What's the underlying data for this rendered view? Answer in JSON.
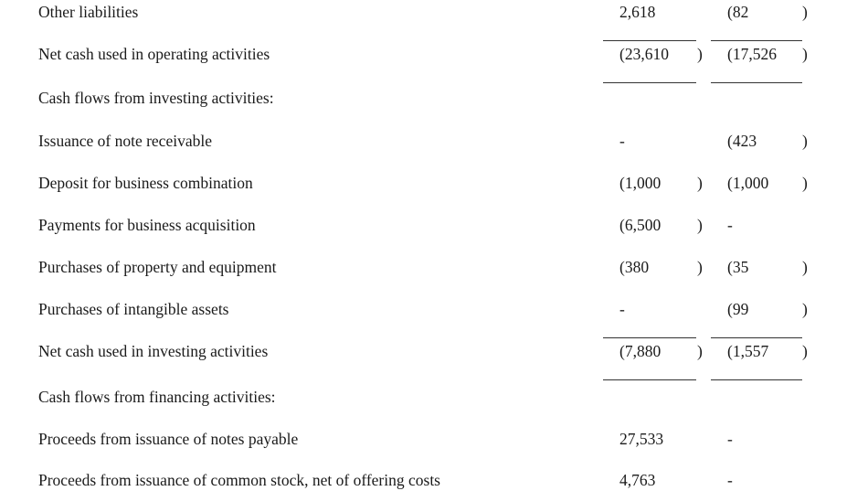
{
  "rows": [
    {
      "label": "Other liabilities",
      "c1": "2,618",
      "c1_paren": "",
      "c2": "(82",
      "c2_paren": ")"
    },
    {
      "label": "Net cash used in operating activities",
      "c1": "(23,610",
      "c1_paren": ")",
      "c2": "(17,526",
      "c2_paren": ")",
      "total": true
    },
    {
      "label": "Cash flows from investing activities:",
      "c1": "",
      "c1_paren": "",
      "c2": "",
      "c2_paren": ""
    },
    {
      "label": "Issuance of note receivable",
      "c1": "-",
      "c1_paren": "",
      "c2": "(423",
      "c2_paren": ")"
    },
    {
      "label": "Deposit for business combination",
      "c1": "(1,000",
      "c1_paren": ")",
      "c2": "(1,000",
      "c2_paren": ")"
    },
    {
      "label": "Payments for business acquisition",
      "c1": "(6,500",
      "c1_paren": ")",
      "c2": "-",
      "c2_paren": ""
    },
    {
      "label": "Purchases of property and equipment",
      "c1": "(380",
      "c1_paren": ")",
      "c2": "(35",
      "c2_paren": ")"
    },
    {
      "label": "Purchases of intangible assets",
      "c1": "-",
      "c1_paren": "",
      "c2": "(99",
      "c2_paren": ")"
    },
    {
      "label": "Net cash used in investing activities",
      "c1": "(7,880",
      "c1_paren": ")",
      "c2": "(1,557",
      "c2_paren": ")",
      "total": true
    },
    {
      "label": "Cash flows from financing activities:",
      "c1": "",
      "c1_paren": "",
      "c2": "",
      "c2_paren": ""
    },
    {
      "label": "Proceeds from issuance of notes payable",
      "c1": "27,533",
      "c1_paren": "",
      "c2": "-",
      "c2_paren": ""
    },
    {
      "label": "Proceeds from issuance of common stock, net of offering costs",
      "c1": "4,763",
      "c1_paren": "",
      "c2": "-",
      "c2_paren": ""
    }
  ]
}
